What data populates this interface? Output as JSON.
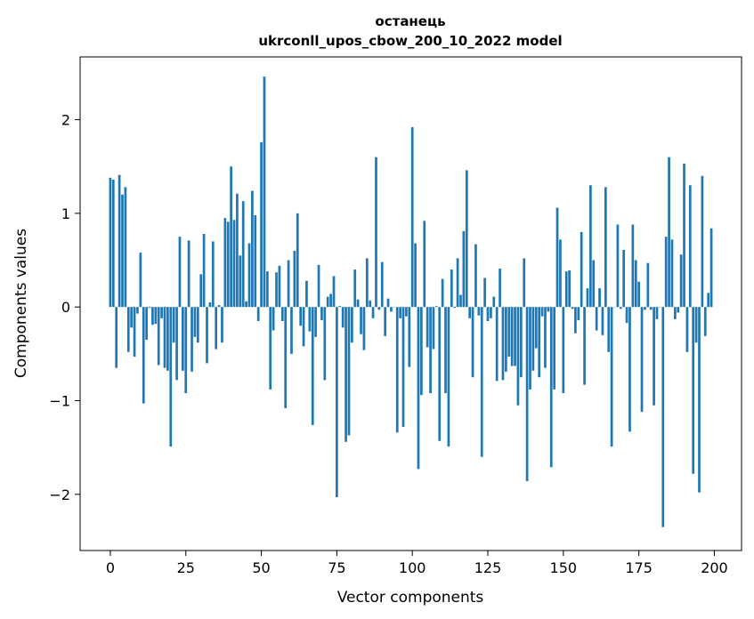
{
  "chart_data": {
    "type": "bar",
    "title": "останець",
    "subtitle": "ukrconll_upos_cbow_200_10_2022 model",
    "xlabel": "Vector components",
    "ylabel": "Components values",
    "xlim": [
      -10,
      209
    ],
    "ylim": [
      -2.6,
      2.67
    ],
    "xticks": [
      0,
      25,
      50,
      75,
      100,
      125,
      150,
      175,
      200
    ],
    "yticks": [
      -2,
      -1,
      0,
      1,
      2
    ],
    "xtick_labels": [
      "0",
      "25",
      "50",
      "75",
      "100",
      "125",
      "150",
      "175",
      "200"
    ],
    "ytick_labels": [
      "−2",
      "−1",
      "0",
      "1",
      "2"
    ],
    "grid": false,
    "bar_color": "#1f77b4",
    "x": [
      0,
      1,
      2,
      3,
      4,
      5,
      6,
      7,
      8,
      9,
      10,
      11,
      12,
      13,
      14,
      15,
      16,
      17,
      18,
      19,
      20,
      21,
      22,
      23,
      24,
      25,
      26,
      27,
      28,
      29,
      30,
      31,
      32,
      33,
      34,
      35,
      36,
      37,
      38,
      39,
      40,
      41,
      42,
      43,
      44,
      45,
      46,
      47,
      48,
      49,
      50,
      51,
      52,
      53,
      54,
      55,
      56,
      57,
      58,
      59,
      60,
      61,
      62,
      63,
      64,
      65,
      66,
      67,
      68,
      69,
      70,
      71,
      72,
      73,
      74,
      75,
      76,
      77,
      78,
      79,
      80,
      81,
      82,
      83,
      84,
      85,
      86,
      87,
      88,
      89,
      90,
      91,
      92,
      93,
      94,
      95,
      96,
      97,
      98,
      99,
      100,
      101,
      102,
      103,
      104,
      105,
      106,
      107,
      108,
      109,
      110,
      111,
      112,
      113,
      114,
      115,
      116,
      117,
      118,
      119,
      120,
      121,
      122,
      123,
      124,
      125,
      126,
      127,
      128,
      129,
      130,
      131,
      132,
      133,
      134,
      135,
      136,
      137,
      138,
      139,
      140,
      141,
      142,
      143,
      144,
      145,
      146,
      147,
      148,
      149,
      150,
      151,
      152,
      153,
      154,
      155,
      156,
      157,
      158,
      159,
      160,
      161,
      162,
      163,
      164,
      165,
      166,
      167,
      168,
      169,
      170,
      171,
      172,
      173,
      174,
      175,
      176,
      177,
      178,
      179,
      180,
      181,
      182,
      183,
      184,
      185,
      186,
      187,
      188,
      189,
      190,
      191,
      192,
      193,
      194,
      195,
      196,
      197,
      198,
      199
    ],
    "values": [
      1.38,
      1.36,
      -0.65,
      1.41,
      1.2,
      1.28,
      -0.48,
      -0.22,
      -0.53,
      -0.07,
      0.58,
      -1.03,
      -0.35,
      -0.01,
      -0.19,
      -0.18,
      -0.62,
      -0.12,
      -0.65,
      -0.68,
      -1.49,
      -0.38,
      -0.78,
      0.75,
      -0.68,
      -0.92,
      0.71,
      -0.69,
      -0.32,
      -0.38,
      0.35,
      0.78,
      -0.6,
      0.05,
      0.7,
      -0.45,
      0.02,
      -0.38,
      0.95,
      0.91,
      1.5,
      0.93,
      1.21,
      0.55,
      1.13,
      0.06,
      0.68,
      1.24,
      0.98,
      -0.15,
      1.76,
      2.46,
      0.38,
      -0.88,
      -0.25,
      0.37,
      0.44,
      -0.15,
      -1.08,
      0.5,
      -0.5,
      0.6,
      1.0,
      -0.2,
      -0.42,
      0.28,
      -0.26,
      -1.26,
      -0.32,
      0.45,
      -0.14,
      -0.78,
      0.11,
      0.14,
      0.33,
      -2.03,
      0.01,
      -0.22,
      -1.44,
      -1.37,
      -0.38,
      0.4,
      0.08,
      -0.29,
      -0.46,
      0.52,
      0.07,
      -0.12,
      1.6,
      -0.03,
      0.48,
      -0.31,
      0.09,
      -0.05,
      0.0,
      -1.34,
      -0.12,
      -1.28,
      -0.1,
      -0.64,
      1.92,
      0.68,
      -1.73,
      -0.94,
      0.92,
      -0.43,
      -0.92,
      -0.45,
      0.01,
      -1.43,
      0.3,
      -0.92,
      -1.49,
      0.4,
      -0.01,
      0.52,
      0.13,
      0.81,
      1.46,
      -0.12,
      -0.75,
      0.67,
      -0.09,
      -1.6,
      0.31,
      -0.15,
      -0.12,
      0.11,
      -0.79,
      0.41,
      -0.78,
      -0.69,
      -0.53,
      -0.63,
      -0.63,
      -1.05,
      -0.75,
      0.52,
      -1.86,
      -0.88,
      -0.68,
      -0.44,
      -0.75,
      -0.1,
      -0.65,
      -0.05,
      -1.71,
      -0.88,
      1.06,
      0.72,
      -0.92,
      0.38,
      0.39,
      -0.02,
      -0.28,
      -0.14,
      0.8,
      -0.83,
      0.2,
      1.3,
      0.5,
      -0.25,
      0.2,
      -0.3,
      1.28,
      -0.48,
      -1.49,
      0.0,
      0.88,
      -0.02,
      0.61,
      -0.17,
      -1.33,
      0.88,
      0.5,
      0.27,
      -1.12,
      -0.03,
      0.47,
      -0.03,
      -1.05,
      -0.13,
      0.0,
      -2.35,
      0.75,
      1.6,
      0.72,
      -0.13,
      -0.06,
      0.56,
      1.53,
      -0.48,
      1.3,
      -1.78,
      -0.38,
      -1.98,
      1.4,
      -0.31,
      0.15,
      0.84
    ]
  }
}
